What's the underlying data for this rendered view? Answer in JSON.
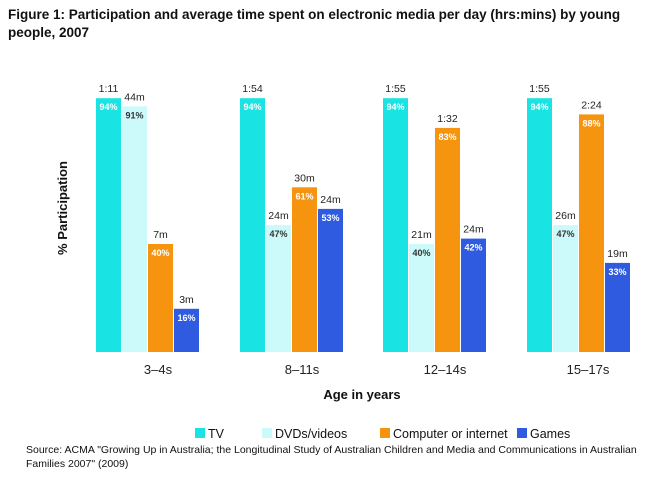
{
  "title": "Figure 1: Participation and average time spent on electronic media per day (hrs:mins) by young people, 2007",
  "source": "Source: ACMA \"Growing Up in Australia; the Longitudinal Study of Australian Children and Media and Communications in Australian Families 2007\" (2009)",
  "chart_data": {
    "type": "bar",
    "title": "Figure 1: Participation and average time spent on electronic media per day (hrs:mins) by young people, 2007",
    "xlabel": "Age in years",
    "ylabel": "% Participation",
    "ylim": [
      0,
      100
    ],
    "grid": false,
    "legend_position": "bottom",
    "categories": [
      "3–4s",
      "8–11s",
      "12–14s",
      "15–17s"
    ],
    "series": [
      {
        "name": "TV",
        "color": "#19e3e3",
        "values": [
          94,
          94,
          94,
          94
        ],
        "value_labels": [
          "94%",
          "94%",
          "94%",
          "94%"
        ],
        "time_labels": [
          "1:11",
          "1:54",
          "1:55",
          "1:55"
        ]
      },
      {
        "name": "DVDs/videos",
        "color": "#ccf9f9",
        "values": [
          91,
          47,
          40,
          47
        ],
        "value_labels": [
          "91%",
          "47%",
          "40%",
          "47%"
        ],
        "time_labels": [
          "44m",
          "24m",
          "21m",
          "26m"
        ]
      },
      {
        "name": "Computer or internet",
        "color": "#f7940f",
        "values": [
          40,
          61,
          83,
          88
        ],
        "value_labels": [
          "40%",
          "61%",
          "83%",
          "88%"
        ],
        "time_labels": [
          "7m",
          "30m",
          "1:32",
          "2:24"
        ]
      },
      {
        "name": "Games",
        "color": "#2e5be0",
        "values": [
          16,
          53,
          42,
          33
        ],
        "value_labels": [
          "16%",
          "53%",
          "42%",
          "33%"
        ],
        "time_labels": [
          "3m",
          "24m",
          "24m",
          "19m"
        ]
      }
    ]
  }
}
